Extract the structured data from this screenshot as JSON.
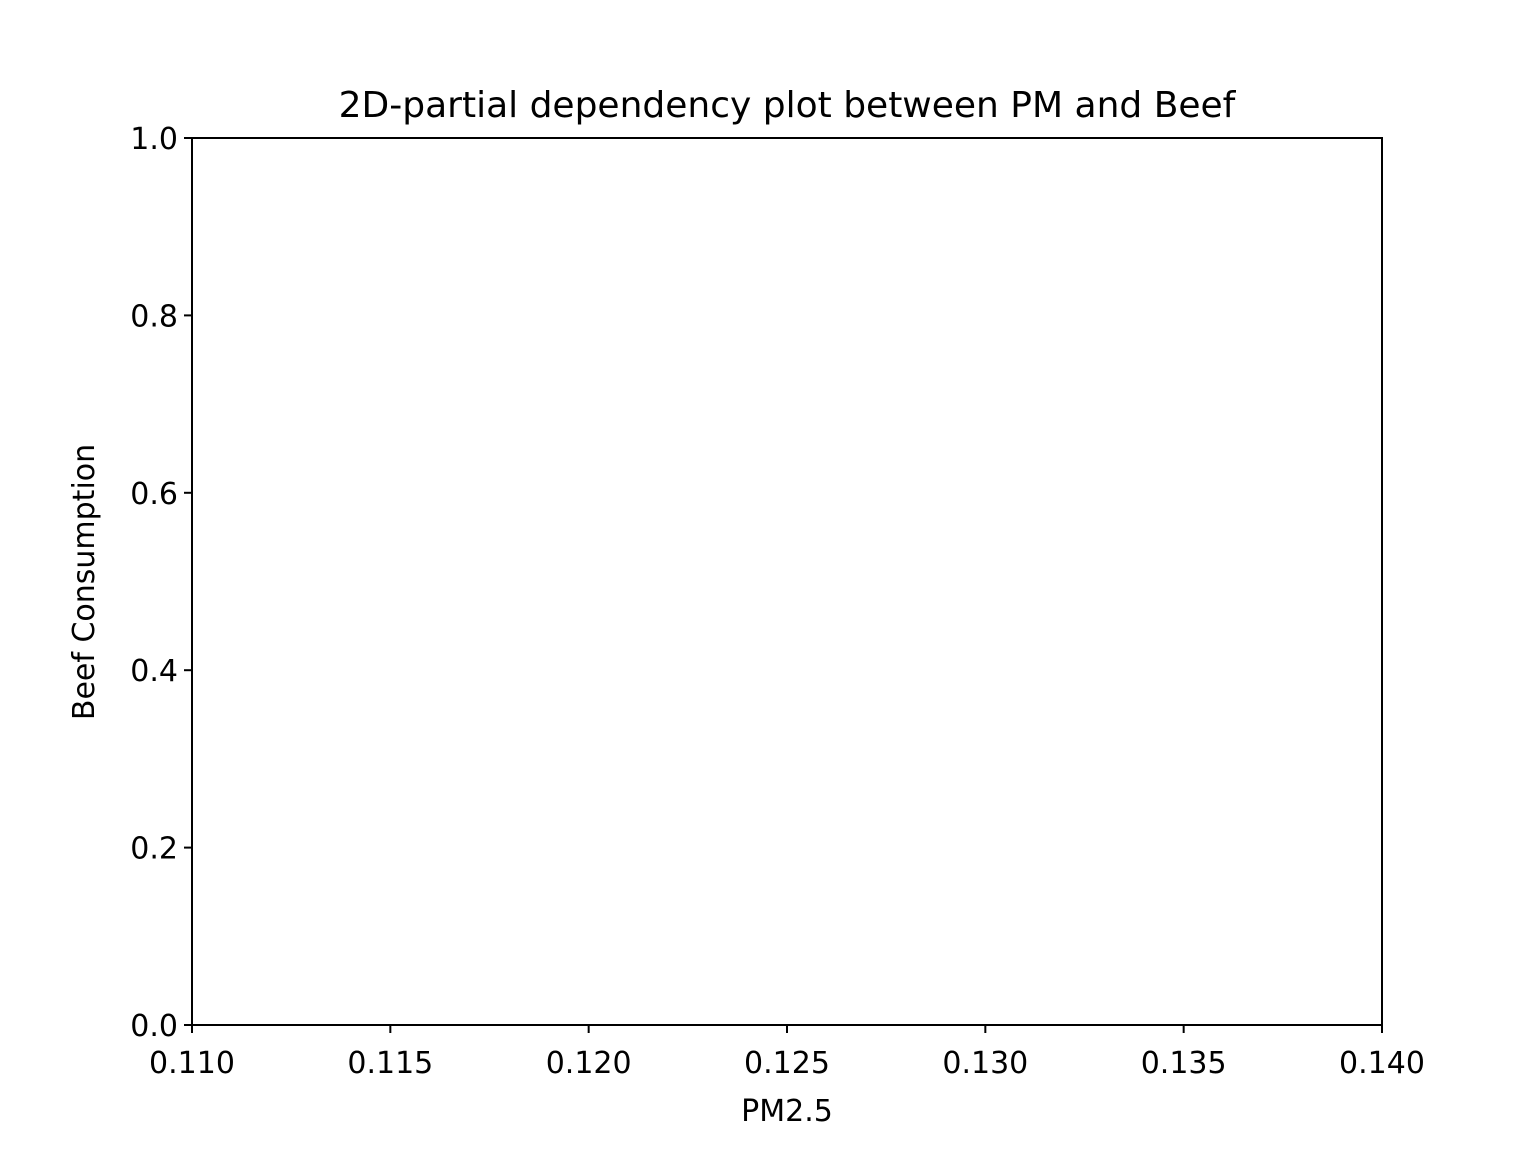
{
  "chart_data": {
    "type": "heatmap",
    "title": "2D-partial dependency plot between PM and Beef",
    "xlabel": "PM2.5",
    "ylabel": "Beef Consumption",
    "xlim": [
      0.11,
      0.14
    ],
    "ylim": [
      0.0,
      1.0
    ],
    "xticks": [
      0.11,
      0.115,
      0.12,
      0.125,
      0.13,
      0.135,
      0.14
    ],
    "xtick_labels": [
      "0.110",
      "0.115",
      "0.120",
      "0.125",
      "0.130",
      "0.135",
      "0.140"
    ],
    "yticks": [
      0.0,
      0.2,
      0.4,
      0.6,
      0.8,
      1.0
    ],
    "ytick_labels": [
      "0.0",
      "0.2",
      "0.4",
      "0.6",
      "0.8",
      "1.0"
    ],
    "grid": false,
    "legend": "none",
    "series": []
  }
}
